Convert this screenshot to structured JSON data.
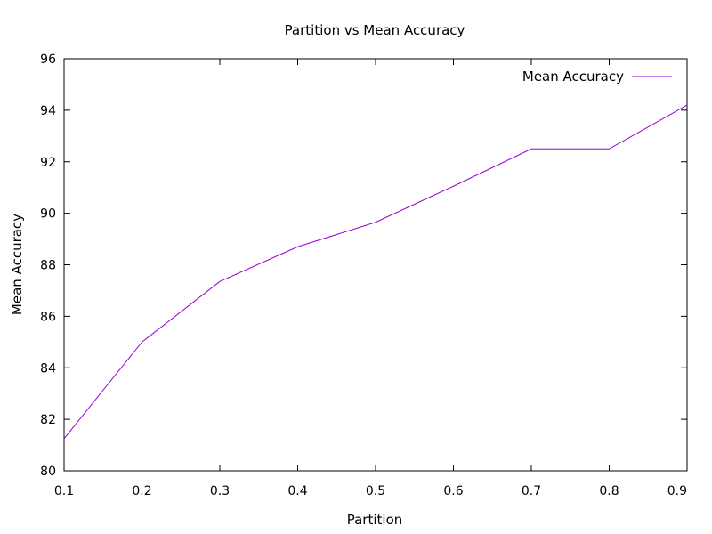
{
  "chart_data": {
    "type": "line",
    "title": "Partition vs Mean Accuracy",
    "xlabel": "Partition",
    "ylabel": "Mean Accuracy",
    "xlim": [
      0.1,
      0.9
    ],
    "ylim": [
      80,
      96
    ],
    "xticks": [
      "0.1",
      "0.2",
      "0.3",
      "0.4",
      "0.5",
      "0.6",
      "0.7",
      "0.8",
      "0.9"
    ],
    "yticks": [
      "80",
      "82",
      "84",
      "86",
      "88",
      "90",
      "92",
      "94",
      "96"
    ],
    "grid": false,
    "legend_position": "top-right",
    "series": [
      {
        "name": "Mean Accuracy",
        "color": "#9400d3",
        "x": [
          0.1,
          0.2,
          0.3,
          0.4,
          0.5,
          0.6,
          0.7,
          0.8,
          0.9
        ],
        "y": [
          81.25,
          85.0,
          87.35,
          88.7,
          89.65,
          91.05,
          92.5,
          92.5,
          94.2
        ]
      }
    ]
  }
}
